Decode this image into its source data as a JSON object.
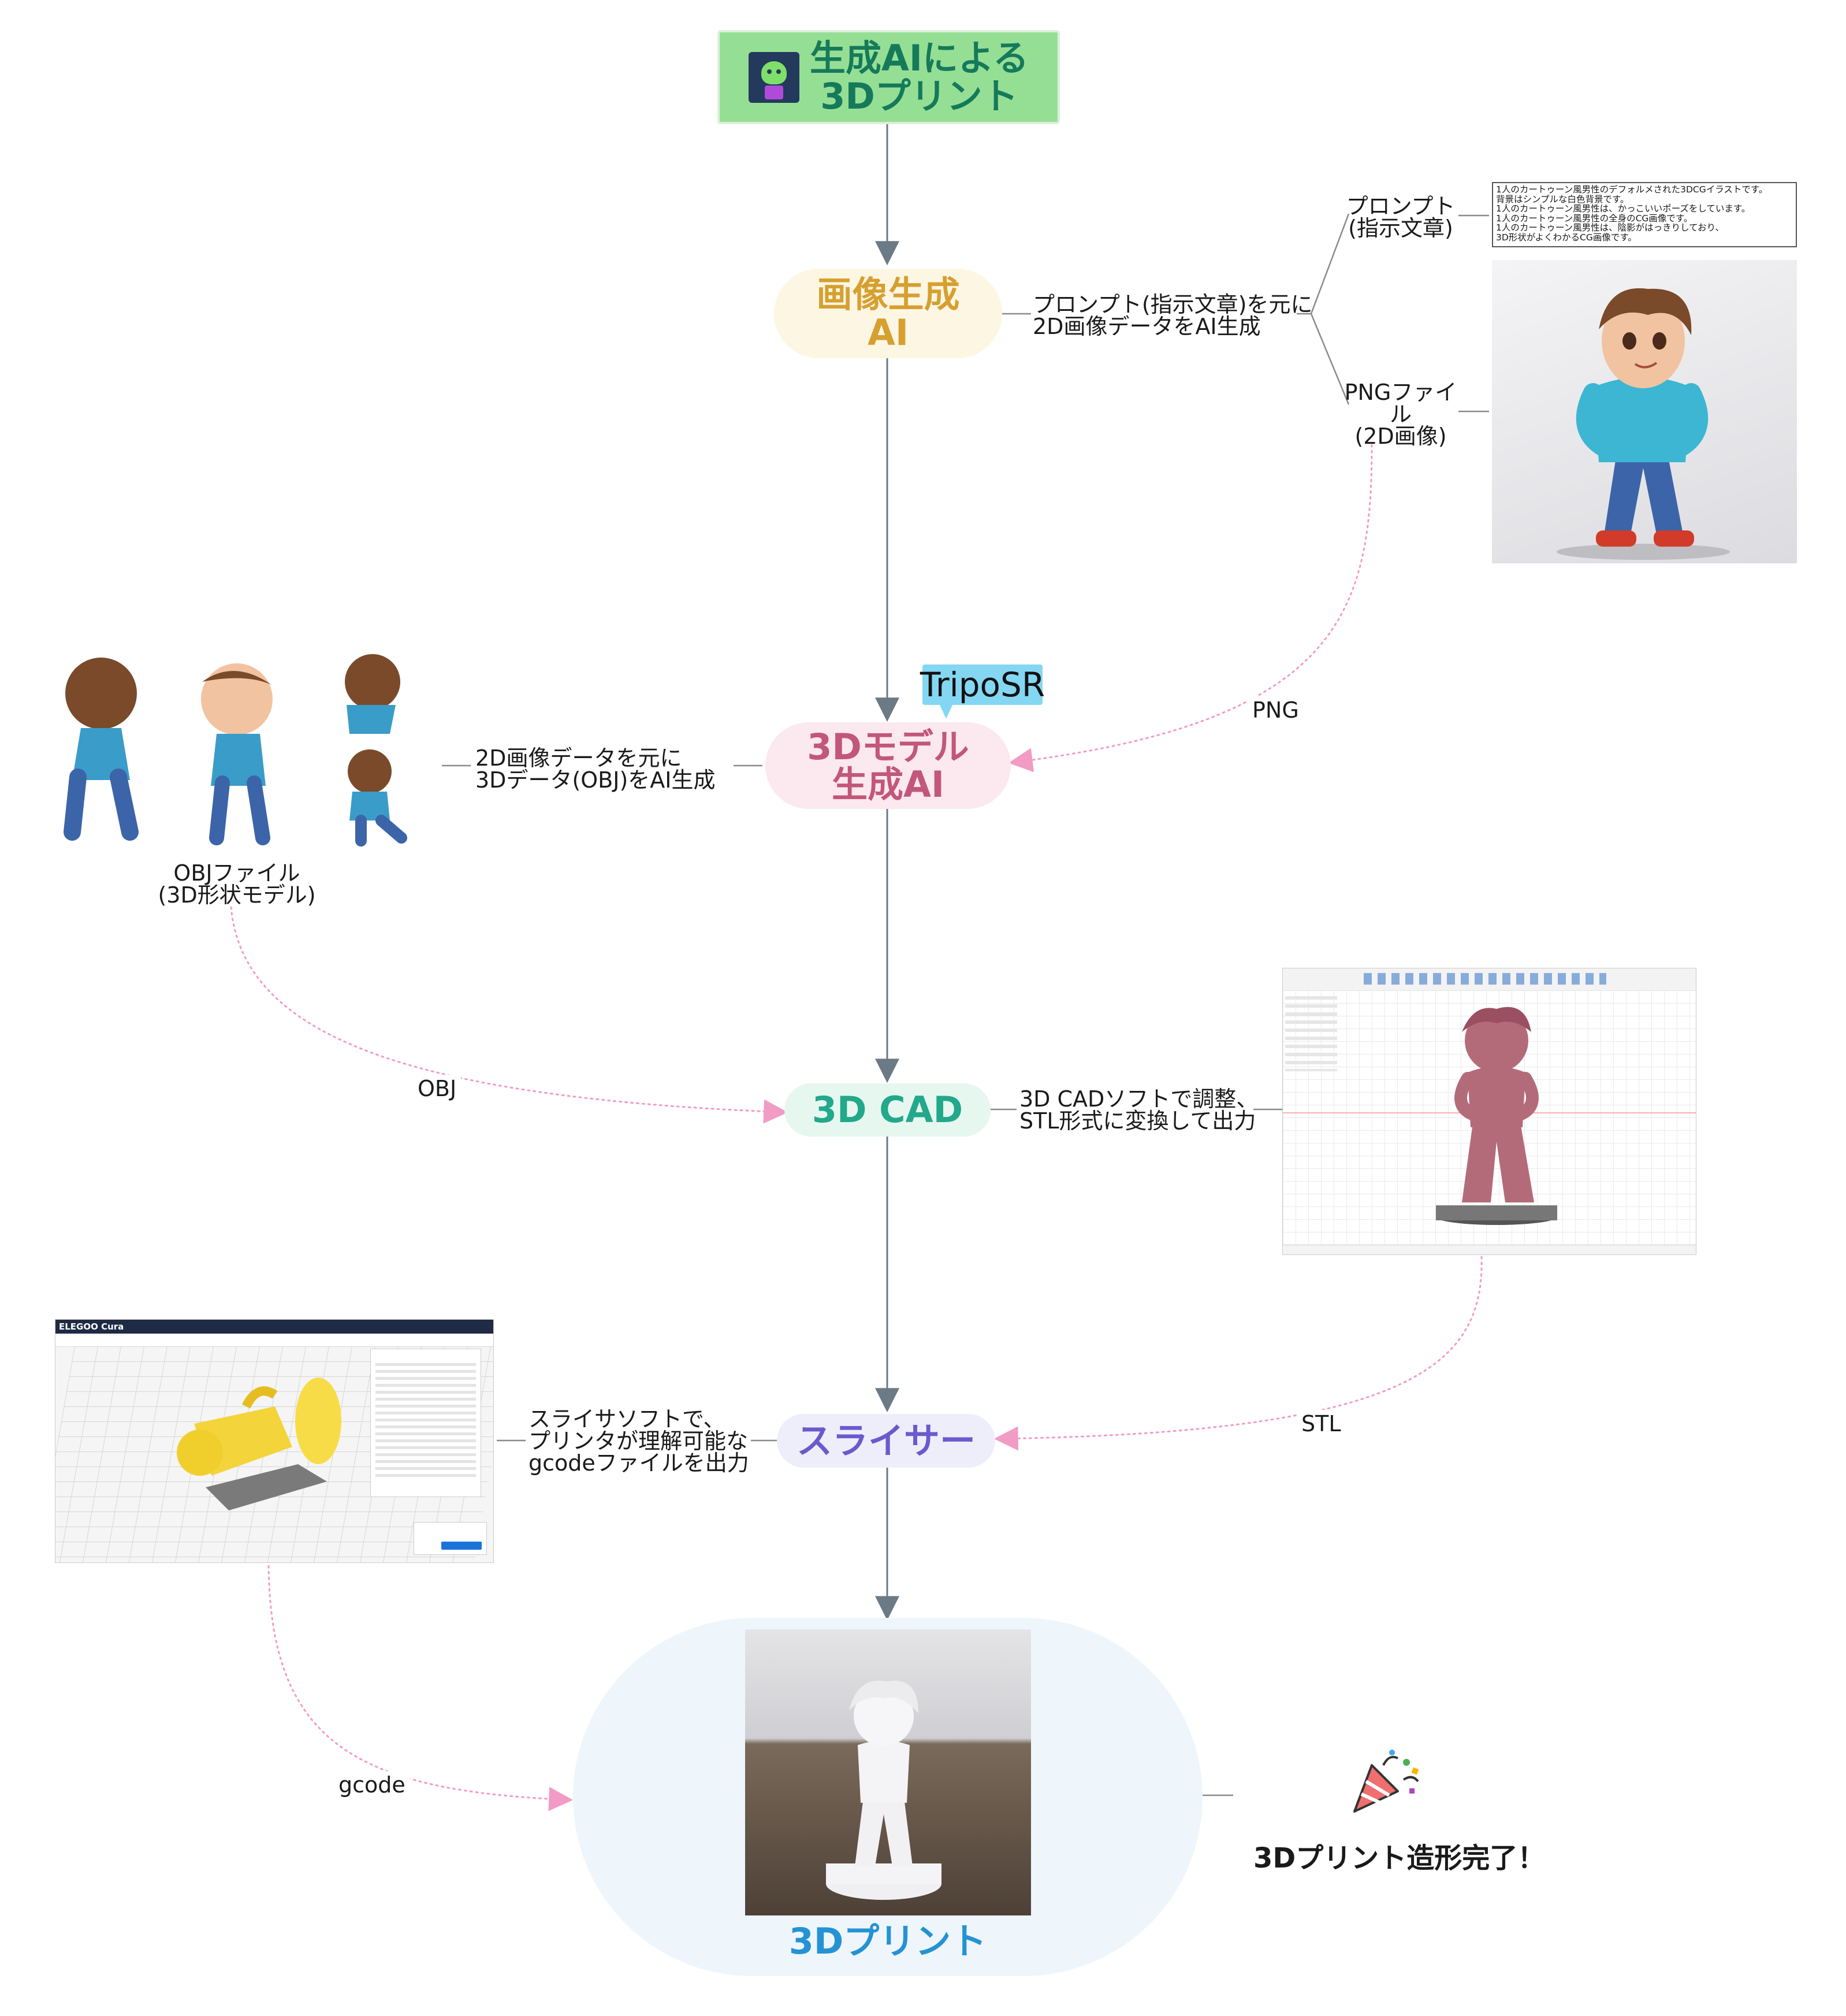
{
  "colors": {
    "root_fill": "#95df95",
    "root_text": "#157a5a",
    "imggen_fill": "#fdf6e3",
    "imggen_text": "#d6a030",
    "model_fill": "#fbe9ef",
    "model_text": "#c2577a",
    "cad_fill": "#e6f7f0",
    "cad_text": "#22a88a",
    "slicer_fill": "#eeeefb",
    "slicer_text": "#6a5acd",
    "print_fill": "#eef6fc",
    "print_text": "#2593d3",
    "tag_fill": "#84d7f3",
    "trunk": "#6b7a85",
    "dotted": "#f29bc4"
  },
  "root": {
    "title_line1": "生成AIによる",
    "title_line2": "3Dプリント",
    "icon": "robot-icon"
  },
  "nodes": {
    "image_gen": {
      "line1": "画像生成",
      "line2": "AI"
    },
    "model_gen": {
      "line1": "3Dモデル",
      "line2": "生成AI",
      "tag": "TripoSR"
    },
    "cad": {
      "label": "3D CAD"
    },
    "slicer": {
      "label": "スライサー"
    },
    "print": {
      "label": "3Dプリント"
    }
  },
  "descriptions": {
    "image_gen": "プロンプト(指示文章)を元に\n2D画像データをAI生成",
    "model_gen": "2D画像データを元に\n3Dデータ(OBJ)をAI生成",
    "cad": "3D CADソフトで調整、\nSTL形式に変換して出力",
    "slicer": "スライサソフトで、\nプリンタが理解可能な\ngcodeファイルを出力"
  },
  "branches": {
    "prompt": "プロンプト\n(指示文章)",
    "png": "PNGファイ\nル\n(2D画像)",
    "obj": "OBJファイル\n(3D形状モデル)"
  },
  "prompt_text": {
    "line1": "1人のカートゥーン風男性のデフォルメされた3DCGイラストです。",
    "line2": "背景はシンプルな白色背景です。",
    "line3": "1人のカートゥーン風男性は、かっこいいポーズをしています。",
    "line4": "1人のカートゥーン風男性の全身のCG画像です。",
    "line5": "1人のカートゥーン風男性は、陰影がはっきりしており、",
    "line6": "3D形状がよくわかるCG画像です。"
  },
  "edge_labels": {
    "png": "PNG",
    "obj": "OBJ",
    "stl": "STL",
    "gcode": "gcode"
  },
  "slicer_app": {
    "brand": "ELEGOO Cura"
  },
  "final": {
    "text": "3Dプリント造形完了！",
    "icon": "party-popper-icon"
  }
}
